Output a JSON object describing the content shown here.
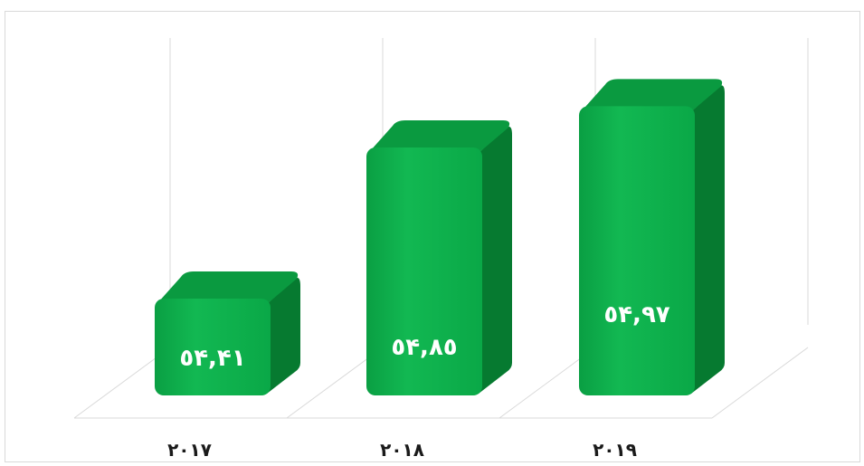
{
  "chart_data": {
    "type": "bar",
    "categories": [
      "٢٠١٧",
      "٢٠١٨",
      "٢٠١٩"
    ],
    "values": [
      54.41,
      54.85,
      54.97
    ],
    "value_labels": [
      "٥۴,۴١",
      "٥۴,٨٥",
      "٥۴,٩٧"
    ],
    "ylim": [
      54.2,
      55.0
    ],
    "grid": "vertical",
    "title": "",
    "xlabel": "",
    "ylabel": "",
    "colors": {
      "bar_front": "#0bb04b",
      "bar_highlight": "#2ecc64",
      "bar_side": "#067a30",
      "bar_top": "#0a9a40",
      "grid": "#d9d9d9"
    }
  }
}
